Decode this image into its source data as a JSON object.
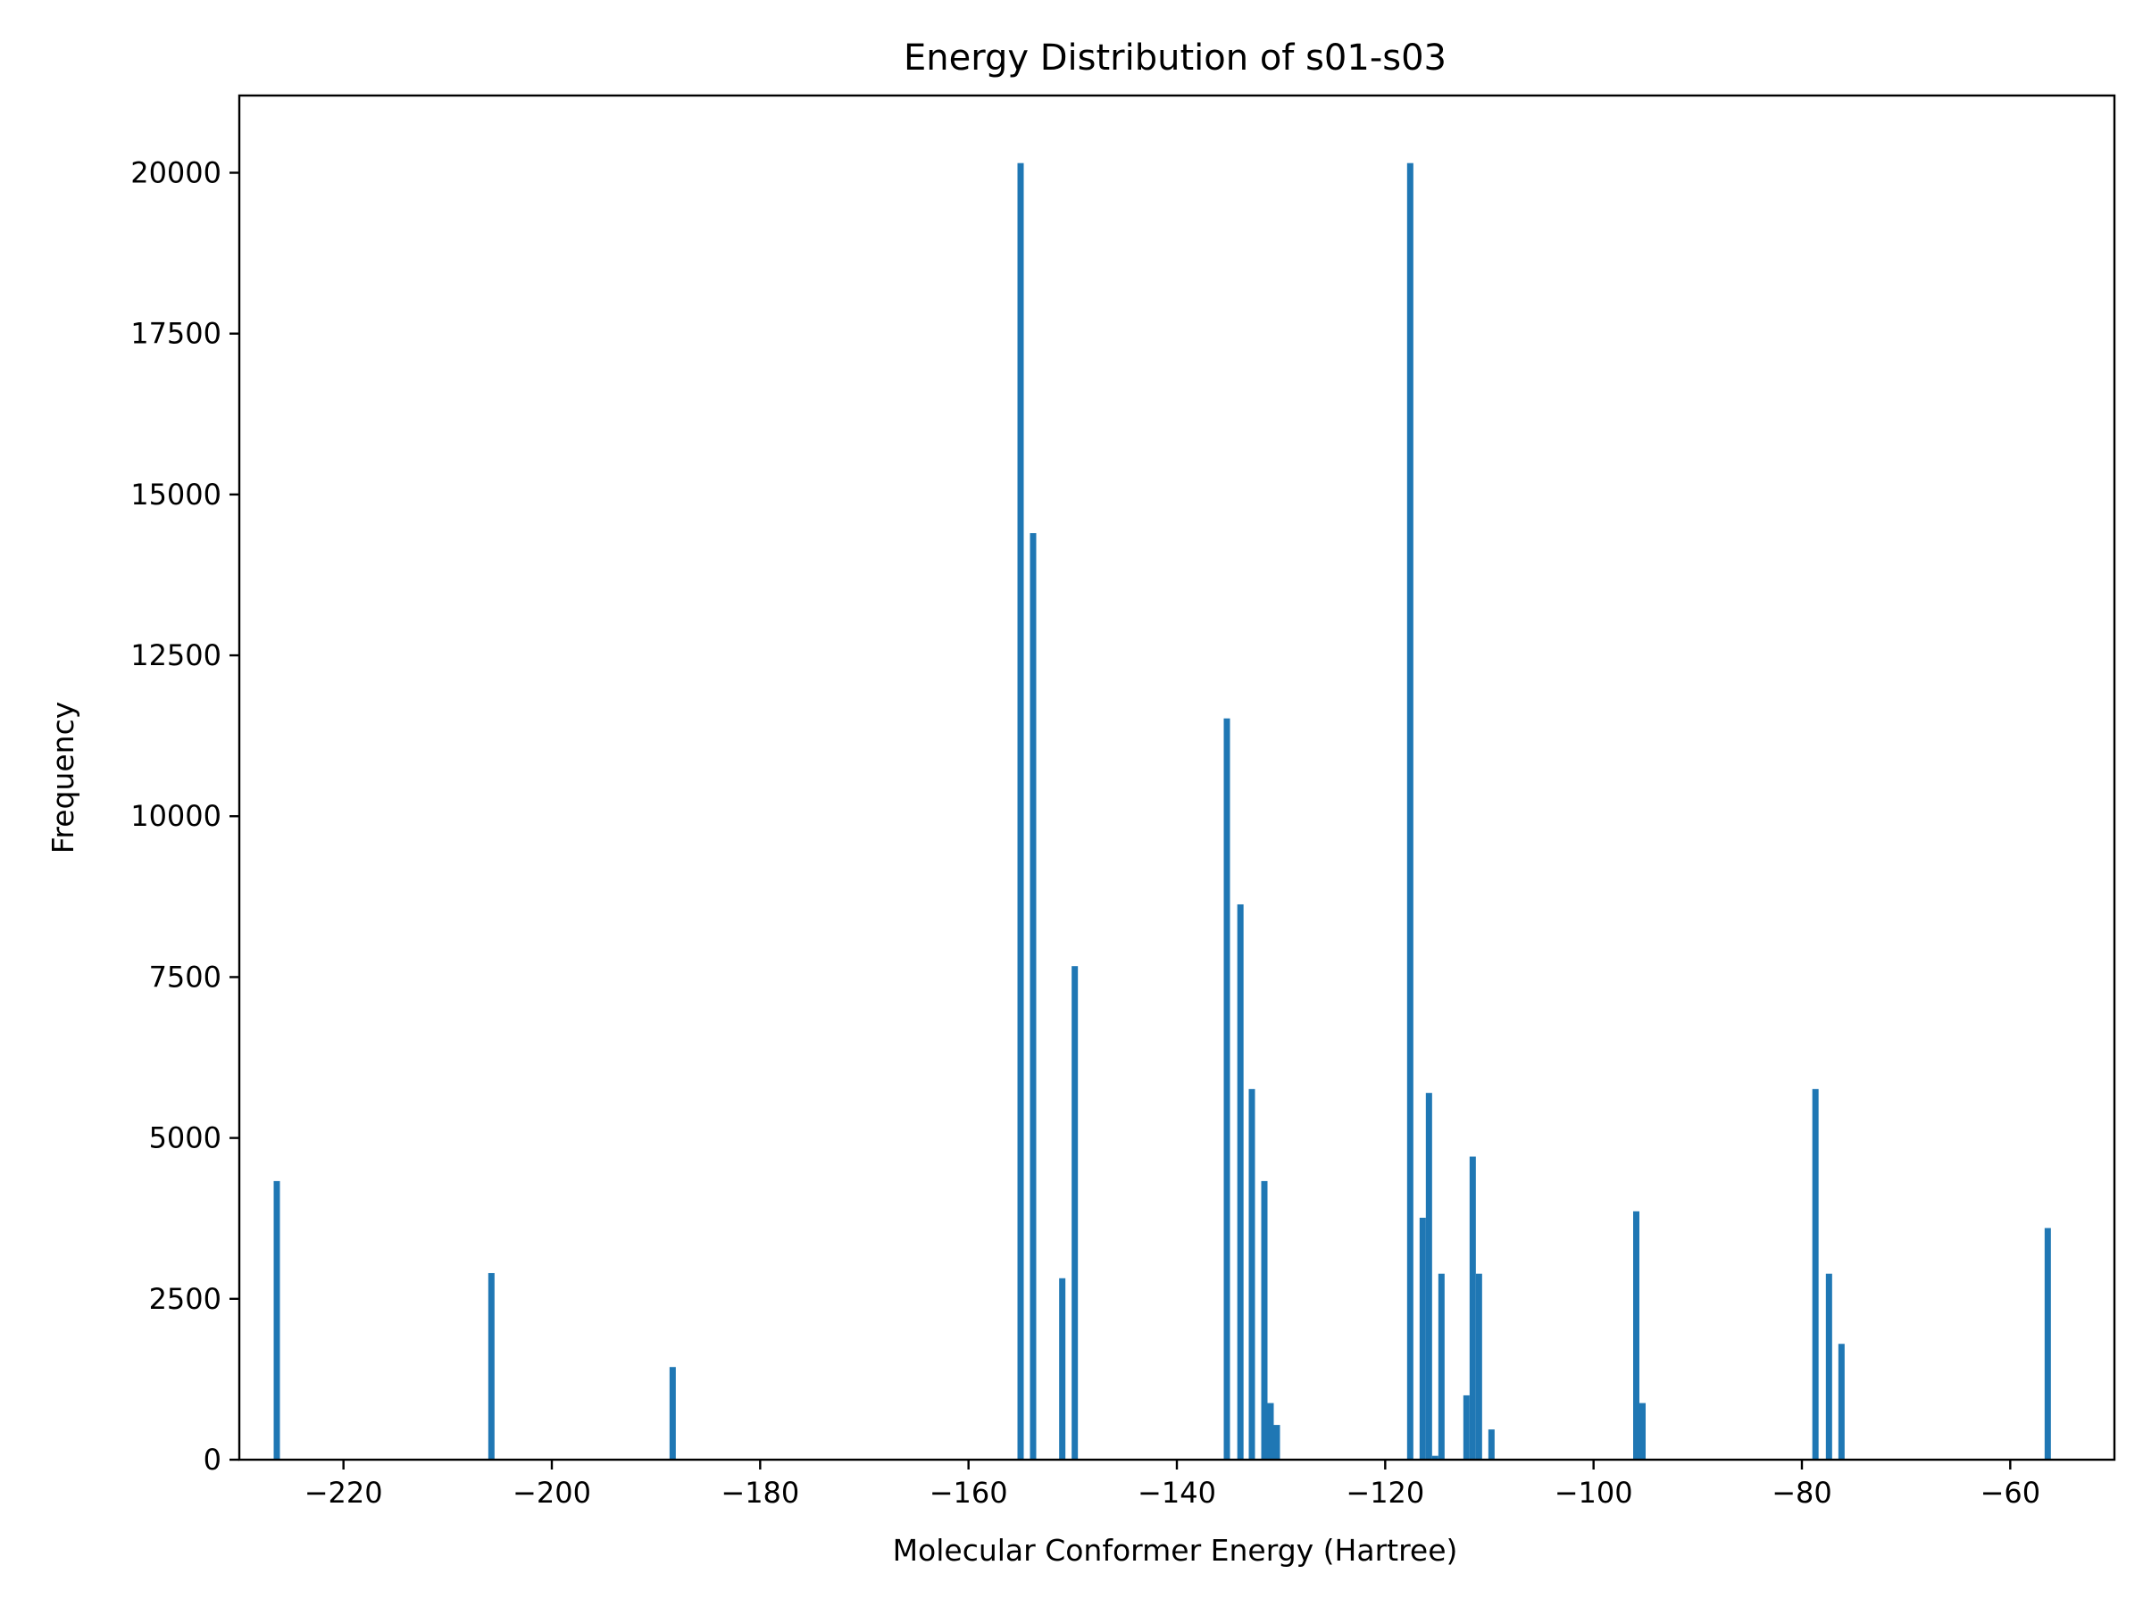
{
  "chart_data": {
    "type": "bar",
    "title": "Energy Distribution of s01-s03",
    "xlabel": "Molecular Conformer Energy (Hartree)",
    "ylabel": "Frequency",
    "xlim": [
      -230,
      -50
    ],
    "ylim": [
      0,
      21200
    ],
    "x_ticks": [
      -220,
      -200,
      -180,
      -160,
      -140,
      -120,
      -100,
      -80,
      -60
    ],
    "x_tick_labels": [
      "−220",
      "−200",
      "−180",
      "−160",
      "−140",
      "−120",
      "−100",
      "−80",
      "−60"
    ],
    "y_ticks": [
      0,
      2500,
      5000,
      7500,
      10000,
      12500,
      15000,
      17500,
      20000
    ],
    "y_tick_labels": [
      "0",
      "2500",
      "5000",
      "7500",
      "10000",
      "12500",
      "15000",
      "17500",
      "20000"
    ],
    "bin_width": 0.6,
    "bar_color": "#1f77b4",
    "grid": false,
    "bins": [
      {
        "x": -226.4,
        "value": 4330
      },
      {
        "x": -205.8,
        "value": 2900
      },
      {
        "x": -188.4,
        "value": 1440
      },
      {
        "x": -155.0,
        "value": 20150
      },
      {
        "x": -153.8,
        "value": 14400
      },
      {
        "x": -151.0,
        "value": 2820
      },
      {
        "x": -149.8,
        "value": 7670
      },
      {
        "x": -135.2,
        "value": 11520
      },
      {
        "x": -133.9,
        "value": 8630
      },
      {
        "x": -132.8,
        "value": 5760
      },
      {
        "x": -131.6,
        "value": 4330
      },
      {
        "x": -131.0,
        "value": 880
      },
      {
        "x": -130.4,
        "value": 540
      },
      {
        "x": -117.6,
        "value": 20150
      },
      {
        "x": -116.4,
        "value": 3760
      },
      {
        "x": -115.8,
        "value": 5700
      },
      {
        "x": -115.2,
        "value": 60
      },
      {
        "x": -114.6,
        "value": 2890
      },
      {
        "x": -112.2,
        "value": 1000
      },
      {
        "x": -111.6,
        "value": 4710
      },
      {
        "x": -111.0,
        "value": 2890
      },
      {
        "x": -109.8,
        "value": 470
      },
      {
        "x": -95.9,
        "value": 3860
      },
      {
        "x": -95.3,
        "value": 880
      },
      {
        "x": -78.7,
        "value": 5760
      },
      {
        "x": -77.4,
        "value": 2890
      },
      {
        "x": -76.2,
        "value": 1800
      },
      {
        "x": -56.4,
        "value": 3600
      }
    ]
  }
}
